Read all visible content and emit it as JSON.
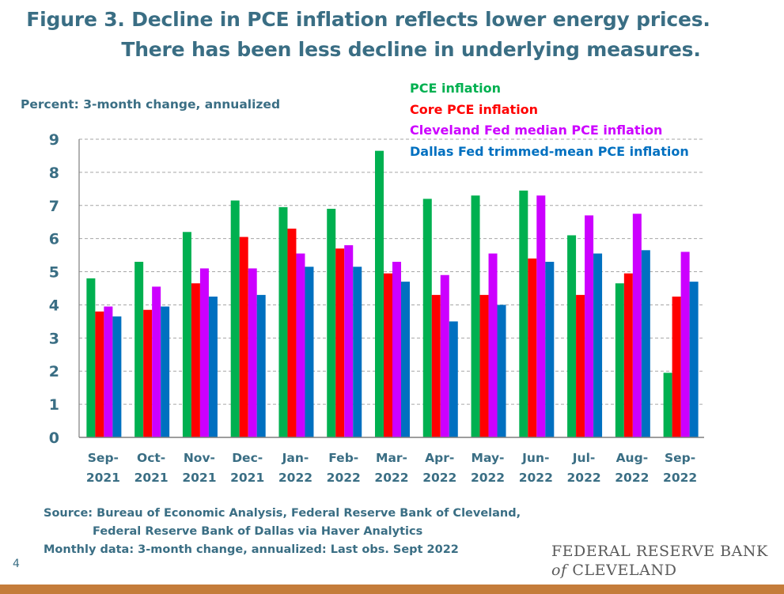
{
  "title_line1": "Figure 3. Decline in PCE inflation reflects lower energy prices.",
  "title_line2": "There has been less decline in underlying measures.",
  "page_number": "4",
  "source_line1": "Source: Bureau of Economic Analysis, Federal Reserve Bank of Cleveland,",
  "source_line2": "Federal Reserve Bank of Dallas via Haver Analytics",
  "source_line3": "Monthly data: 3-month change, annualized: Last obs. Sept 2022",
  "logo": {
    "line1": "FEDERAL RESERVE BANK",
    "of": "of",
    "line2": "CLEVELAND"
  },
  "colors": {
    "text": "#3a6e84",
    "bottom_bar": "#c47c3a"
  },
  "chart_data": {
    "type": "bar",
    "ylabel": "Percent: 3-month change, annualized",
    "ylim": [
      0,
      9
    ],
    "yticks": [
      0,
      1,
      2,
      3,
      4,
      5,
      6,
      7,
      8,
      9
    ],
    "grid": true,
    "legend_position": "top-right",
    "categories": [
      [
        "Sep-",
        "2021"
      ],
      [
        "Oct-",
        "2021"
      ],
      [
        "Nov-",
        "2021"
      ],
      [
        "Dec-",
        "2021"
      ],
      [
        "Jan-",
        "2022"
      ],
      [
        "Feb-",
        "2022"
      ],
      [
        "Mar-",
        "2022"
      ],
      [
        "Apr-",
        "2022"
      ],
      [
        "May-",
        "2022"
      ],
      [
        "Jun-",
        "2022"
      ],
      [
        "Jul-",
        "2022"
      ],
      [
        "Aug-",
        "2022"
      ],
      [
        "Sep-",
        "2022"
      ]
    ],
    "series": [
      {
        "name": "PCE inflation",
        "color": "#00b050",
        "values": [
          4.8,
          5.3,
          6.2,
          7.15,
          6.95,
          6.9,
          8.65,
          7.2,
          7.3,
          7.45,
          6.1,
          4.65,
          1.95
        ]
      },
      {
        "name": "Core PCE inflation",
        "color": "#ff0000",
        "values": [
          3.8,
          3.85,
          4.65,
          6.05,
          6.3,
          5.7,
          4.95,
          4.3,
          4.3,
          5.4,
          4.3,
          4.95,
          4.25
        ]
      },
      {
        "name": "Cleveland Fed median PCE inflation",
        "color": "#cc00ff",
        "values": [
          3.95,
          4.55,
          5.1,
          5.1,
          5.55,
          5.8,
          5.3,
          4.9,
          5.55,
          7.3,
          6.7,
          6.75,
          5.6
        ]
      },
      {
        "name": "Dallas Fed trimmed-mean PCE inflation",
        "color": "#0070c0",
        "values": [
          3.65,
          3.95,
          4.25,
          4.3,
          5.15,
          5.15,
          4.7,
          3.5,
          4.0,
          5.3,
          5.55,
          5.65,
          4.7
        ]
      }
    ]
  }
}
